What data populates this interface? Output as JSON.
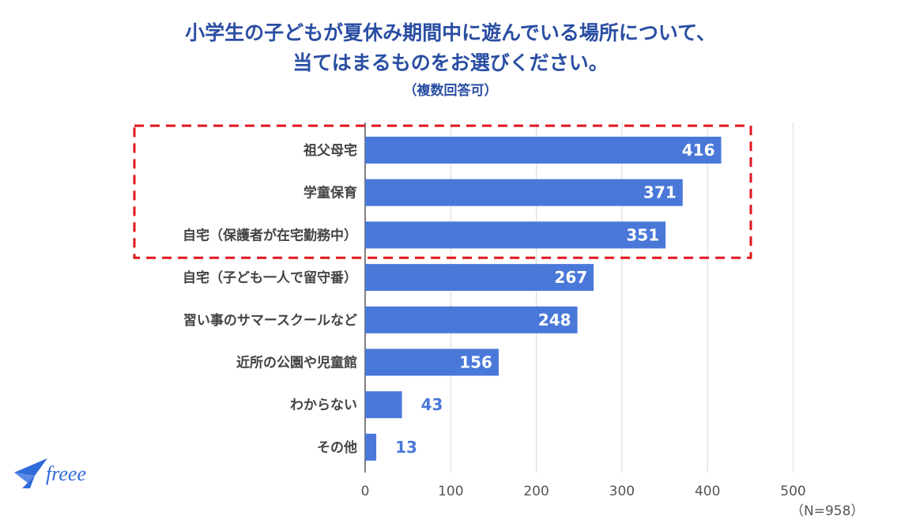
{
  "title_line1": "小学生の子どもが夏休み期間中に遊んでいる場所について、",
  "title_line2": "当てはまるものをお選びください。",
  "title_line3": "（複数回答可）",
  "n_label": "（N=958）",
  "logo_text": "freee",
  "colors": {
    "bar": "#4a78d9",
    "title": "#2a4ea3",
    "highlight": "#e0151e",
    "label_outside": "#4a78d9"
  },
  "chart_data": {
    "type": "bar",
    "orientation": "horizontal",
    "categories": [
      "祖父母宅",
      "学童保育",
      "自宅（保護者が在宅勤務中）",
      "自宅（子ども一人で留守番）",
      "習い事のサマースクールなど",
      "近所の公園や児童館",
      "わからない",
      "その他"
    ],
    "values": [
      416,
      371,
      351,
      267,
      248,
      156,
      43,
      13
    ],
    "xlim": [
      0,
      500
    ],
    "xticks": [
      0,
      100,
      200,
      300,
      400,
      500
    ],
    "grid": true,
    "highlighted_categories": [
      "祖父母宅",
      "学童保育",
      "自宅（保護者が在宅勤務中）"
    ]
  }
}
